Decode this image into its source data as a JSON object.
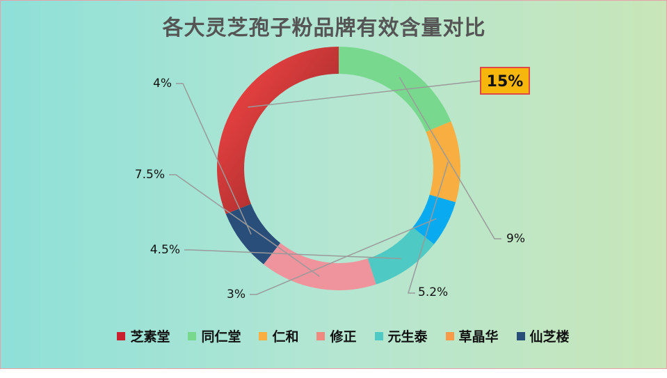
{
  "title": "各大灵芝孢子粉品牌有效含量对比",
  "chart_data": {
    "type": "pie",
    "donut": true,
    "slices": [
      {
        "label": "芝素堂",
        "value": 15,
        "text": "15%",
        "color": "#d8303a",
        "highlight": true
      },
      {
        "label": "同仁堂",
        "value": 9,
        "text": "9%",
        "color": "#78d98e"
      },
      {
        "label": "仁和",
        "value": 5.2,
        "text": "5.2%",
        "color": "#f8ae40"
      },
      {
        "label": "",
        "value": 3,
        "text": "3%",
        "color": "#0aaaf0"
      },
      {
        "label": "元生泰",
        "value": 4.5,
        "text": "4.5%",
        "color": "#4ec9c4"
      },
      {
        "label": "修正",
        "value": 7.5,
        "text": "7.5%",
        "color": "#ef939c"
      },
      {
        "label": "仙芝楼",
        "value": 4,
        "text": "4%",
        "color": "#2a4e7a"
      }
    ],
    "legend": {
      "position": "bottom",
      "items": [
        {
          "label": "芝素堂",
          "color": "#c8202e"
        },
        {
          "label": "同仁堂",
          "color": "#78d98e"
        },
        {
          "label": "仁和",
          "color": "#f8ae40"
        },
        {
          "label": "修正",
          "color": "#f08a80"
        },
        {
          "label": "元生泰",
          "color": "#4ec9c4"
        },
        {
          "label": "草晶华",
          "color": "#f89a48"
        },
        {
          "label": "仙芝楼",
          "color": "#2a4e7a"
        }
      ]
    }
  }
}
